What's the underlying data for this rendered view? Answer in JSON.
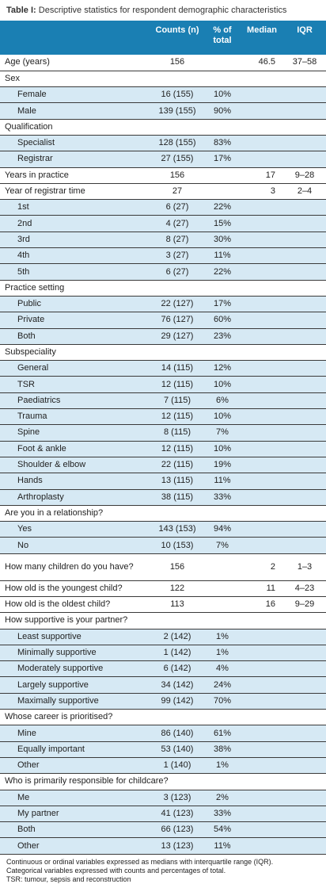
{
  "caption": {
    "label": "Table I:",
    "title": " Descriptive statistics for respondent demographic characteristics"
  },
  "headers": {
    "counts": "Counts (n)",
    "pct": "% of total",
    "median": "Median",
    "iqr": "IQR"
  },
  "rows": [
    {
      "type": "cat",
      "label": "Age (years)",
      "counts": "156",
      "pct": "",
      "median": "46.5",
      "iqr": "37–58"
    },
    {
      "type": "cat",
      "label": "Sex",
      "counts": "",
      "pct": "",
      "median": "",
      "iqr": ""
    },
    {
      "type": "sub",
      "label": "Female",
      "counts": "16 (155)",
      "pct": "10%",
      "median": "",
      "iqr": ""
    },
    {
      "type": "sub",
      "label": "Male",
      "counts": "139 (155)",
      "pct": "90%",
      "median": "",
      "iqr": ""
    },
    {
      "type": "cat",
      "label": "Qualification",
      "counts": "",
      "pct": "",
      "median": "",
      "iqr": ""
    },
    {
      "type": "sub",
      "label": "Specialist",
      "counts": "128 (155)",
      "pct": "83%",
      "median": "",
      "iqr": ""
    },
    {
      "type": "sub",
      "label": "Registrar",
      "counts": "27 (155)",
      "pct": "17%",
      "median": "",
      "iqr": ""
    },
    {
      "type": "cat",
      "label": "Years in practice",
      "counts": "156",
      "pct": "",
      "median": "17",
      "iqr": "9–28"
    },
    {
      "type": "cat",
      "label": "Year of registrar time",
      "counts": "27",
      "pct": "",
      "median": "3",
      "iqr": "2–4"
    },
    {
      "type": "sub",
      "label": "1st",
      "counts": "6 (27)",
      "pct": "22%",
      "median": "",
      "iqr": ""
    },
    {
      "type": "sub",
      "label": "2nd",
      "counts": "4 (27)",
      "pct": "15%",
      "median": "",
      "iqr": ""
    },
    {
      "type": "sub",
      "label": "3rd",
      "counts": "8 (27)",
      "pct": "30%",
      "median": "",
      "iqr": ""
    },
    {
      "type": "sub",
      "label": "4th",
      "counts": "3 (27)",
      "pct": "11%",
      "median": "",
      "iqr": ""
    },
    {
      "type": "sub",
      "label": "5th",
      "counts": "6 (27)",
      "pct": "22%",
      "median": "",
      "iqr": ""
    },
    {
      "type": "cat",
      "label": "Practice setting",
      "counts": "",
      "pct": "",
      "median": "",
      "iqr": ""
    },
    {
      "type": "sub",
      "label": "Public",
      "counts": "22 (127)",
      "pct": "17%",
      "median": "",
      "iqr": ""
    },
    {
      "type": "sub",
      "label": "Private",
      "counts": "76 (127)",
      "pct": "60%",
      "median": "",
      "iqr": ""
    },
    {
      "type": "sub",
      "label": "Both",
      "counts": "29 (127)",
      "pct": "23%",
      "median": "",
      "iqr": ""
    },
    {
      "type": "cat",
      "label": "Subspeciality",
      "counts": "",
      "pct": "",
      "median": "",
      "iqr": ""
    },
    {
      "type": "sub",
      "label": "General",
      "counts": "14 (115)",
      "pct": "12%",
      "median": "",
      "iqr": ""
    },
    {
      "type": "sub",
      "label": "TSR",
      "counts": "12 (115)",
      "pct": "10%",
      "median": "",
      "iqr": ""
    },
    {
      "type": "sub",
      "label": "Paediatrics",
      "counts": "7 (115)",
      "pct": "6%",
      "median": "",
      "iqr": ""
    },
    {
      "type": "sub",
      "label": "Trauma",
      "counts": "12 (115)",
      "pct": "10%",
      "median": "",
      "iqr": ""
    },
    {
      "type": "sub",
      "label": "Spine",
      "counts": "8 (115)",
      "pct": "7%",
      "median": "",
      "iqr": ""
    },
    {
      "type": "sub",
      "label": "Foot & ankle",
      "counts": "12 (115)",
      "pct": "10%",
      "median": "",
      "iqr": ""
    },
    {
      "type": "sub",
      "label": "Shoulder & elbow",
      "counts": "22 (115)",
      "pct": "19%",
      "median": "",
      "iqr": ""
    },
    {
      "type": "sub",
      "label": "Hands",
      "counts": "13 (115)",
      "pct": "11%",
      "median": "",
      "iqr": ""
    },
    {
      "type": "sub",
      "label": "Arthroplasty",
      "counts": "38 (115)",
      "pct": "33%",
      "median": "",
      "iqr": ""
    },
    {
      "type": "cat",
      "label": "Are you in a relationship?",
      "counts": "",
      "pct": "",
      "median": "",
      "iqr": ""
    },
    {
      "type": "sub",
      "label": "Yes",
      "counts": "143 (153)",
      "pct": "94%",
      "median": "",
      "iqr": ""
    },
    {
      "type": "sub",
      "label": "No",
      "counts": "10 (153)",
      "pct": "7%",
      "median": "",
      "iqr": ""
    },
    {
      "type": "cat tall",
      "label": "How many children do you have?",
      "counts": "156",
      "pct": "",
      "median": "2",
      "iqr": "1–3"
    },
    {
      "type": "cat",
      "label": "How old is the youngest child?",
      "counts": "122",
      "pct": "",
      "median": "11",
      "iqr": "4–23"
    },
    {
      "type": "cat",
      "label": "How old is the oldest child?",
      "counts": "113",
      "pct": "",
      "median": "16",
      "iqr": "9–29"
    },
    {
      "type": "cat",
      "label": "How supportive is your partner?",
      "counts": "",
      "pct": "",
      "median": "",
      "iqr": ""
    },
    {
      "type": "sub",
      "label": "Least supportive",
      "counts": "2 (142)",
      "pct": "1%",
      "median": "",
      "iqr": ""
    },
    {
      "type": "sub",
      "label": "Minimally supportive",
      "counts": "1 (142)",
      "pct": "1%",
      "median": "",
      "iqr": ""
    },
    {
      "type": "sub",
      "label": "Moderately supportive",
      "counts": "6 (142)",
      "pct": "4%",
      "median": "",
      "iqr": ""
    },
    {
      "type": "sub",
      "label": "Largely supportive",
      "counts": "34 (142)",
      "pct": "24%",
      "median": "",
      "iqr": ""
    },
    {
      "type": "sub",
      "label": "Maximally supportive",
      "counts": "99 (142)",
      "pct": "70%",
      "median": "",
      "iqr": ""
    },
    {
      "type": "cat",
      "label": "Whose career is prioritised?",
      "counts": "",
      "pct": "",
      "median": "",
      "iqr": ""
    },
    {
      "type": "sub",
      "label": "Mine",
      "counts": "86 (140)",
      "pct": "61%",
      "median": "",
      "iqr": ""
    },
    {
      "type": "sub",
      "label": "Equally important",
      "counts": "53 (140)",
      "pct": "38%",
      "median": "",
      "iqr": ""
    },
    {
      "type": "sub",
      "label": "Other",
      "counts": "1 (140)",
      "pct": "1%",
      "median": "",
      "iqr": ""
    },
    {
      "type": "cat",
      "label": "Who is primarily responsible for childcare?",
      "counts": "",
      "pct": "",
      "median": "",
      "iqr": ""
    },
    {
      "type": "sub",
      "label": "Me",
      "counts": "3 (123)",
      "pct": "2%",
      "median": "",
      "iqr": ""
    },
    {
      "type": "sub",
      "label": "My partner",
      "counts": "41 (123)",
      "pct": "33%",
      "median": "",
      "iqr": ""
    },
    {
      "type": "sub",
      "label": "Both",
      "counts": "66 (123)",
      "pct": "54%",
      "median": "",
      "iqr": ""
    },
    {
      "type": "sub",
      "label": "Other",
      "counts": "13 (123)",
      "pct": "11%",
      "median": "",
      "iqr": ""
    }
  ],
  "footnotes": [
    "Continuous or ordinal variables expressed as medians with interquartile range (IQR).",
    "Categorical variables expressed with counts and percentages of total.",
    "TSR: tumour, sepsis and reconstruction"
  ],
  "colors": {
    "header_bg": "#1a7fb3",
    "sub_row_bg": "#d6e9f4"
  }
}
